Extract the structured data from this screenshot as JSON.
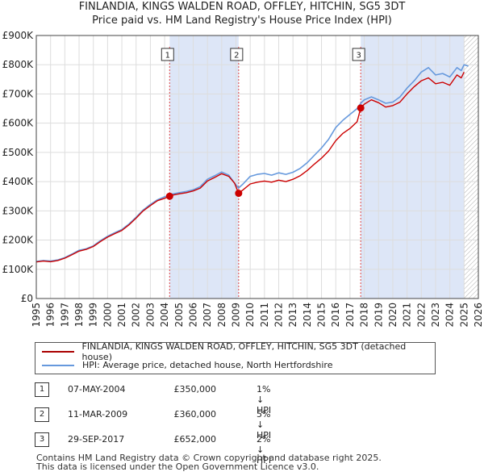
{
  "chart_data": {
    "type": "line",
    "title": "FINLANDIA, KINGS WALDEN ROAD, OFFLEY, HITCHIN, SG5 3DT",
    "subtitle": "Price paid vs. HM Land Registry's House Price Index (HPI)",
    "xlabel": "",
    "ylabel": "",
    "xlim": [
      1995,
      2026
    ],
    "ylim": [
      0,
      900000
    ],
    "yticks": [
      0,
      100000,
      200000,
      300000,
      400000,
      500000,
      600000,
      700000,
      800000,
      900000
    ],
    "ytick_labels": [
      "£0",
      "£100K",
      "£200K",
      "£300K",
      "£400K",
      "£500K",
      "£600K",
      "£700K",
      "£800K",
      "£900K"
    ],
    "xticks": [
      1995,
      1996,
      1997,
      1998,
      1999,
      2000,
      2001,
      2002,
      2003,
      2004,
      2005,
      2006,
      2007,
      2008,
      2009,
      2010,
      2011,
      2012,
      2013,
      2014,
      2015,
      2016,
      2017,
      2018,
      2019,
      2020,
      2021,
      2022,
      2023,
      2024,
      2025,
      2026
    ],
    "xtick_labels": [
      "1995",
      "1996",
      "1997",
      "1998",
      "1999",
      "2000",
      "2001",
      "2002",
      "2003",
      "2004",
      "2005",
      "2006",
      "2007",
      "2008",
      "2009",
      "2010",
      "2011",
      "2012",
      "2013",
      "2014",
      "2015",
      "2016",
      "2017",
      "2018",
      "2019",
      "2020",
      "2021",
      "2022",
      "2023",
      "2024",
      "2025",
      "2026"
    ],
    "grid": true,
    "shaded_periods": [
      [
        2004.35,
        2009.19
      ],
      [
        2017.75,
        2025.0
      ]
    ],
    "hatched_from": 2025.0,
    "series": [
      {
        "name": "FINLANDIA, KINGS WALDEN ROAD, OFFLEY, HITCHIN, SG5 3DT (detached house)",
        "color": "#cc0000",
        "x": [
          1995.0,
          1995.5,
          1996.0,
          1996.5,
          1997.0,
          1997.5,
          1998.0,
          1998.5,
          1999.0,
          1999.5,
          2000.0,
          2000.5,
          2001.0,
          2001.5,
          2002.0,
          2002.5,
          2003.0,
          2003.5,
          2004.0,
          2004.35,
          2004.5,
          2005.0,
          2005.5,
          2006.0,
          2006.5,
          2007.0,
          2007.5,
          2008.0,
          2008.5,
          2008.9,
          2009.19,
          2009.5,
          2010.0,
          2010.5,
          2011.0,
          2011.5,
          2012.0,
          2012.5,
          2013.0,
          2013.5,
          2014.0,
          2014.5,
          2015.0,
          2015.5,
          2016.0,
          2016.5,
          2017.0,
          2017.5,
          2017.75,
          2018.0,
          2018.5,
          2019.0,
          2019.5,
          2020.0,
          2020.5,
          2021.0,
          2021.5,
          2022.0,
          2022.5,
          2023.0,
          2023.5,
          2024.0,
          2024.5,
          2024.8,
          2025.0
        ],
        "values": [
          125000,
          128000,
          126000,
          130000,
          138000,
          150000,
          162000,
          168000,
          178000,
          195000,
          210000,
          222000,
          233000,
          252000,
          275000,
          300000,
          318000,
          335000,
          343000,
          350000,
          353000,
          358000,
          362000,
          368000,
          378000,
          402000,
          414000,
          427000,
          418000,
          395000,
          360000,
          372000,
          392000,
          398000,
          402000,
          398000,
          405000,
          400000,
          408000,
          420000,
          438000,
          460000,
          480000,
          505000,
          540000,
          565000,
          582000,
          605000,
          652000,
          665000,
          680000,
          670000,
          655000,
          660000,
          672000,
          700000,
          725000,
          745000,
          755000,
          735000,
          740000,
          730000,
          765000,
          755000,
          775000
        ]
      },
      {
        "name": "HPI: Average price, detached house, North Hertfordshire",
        "color": "#6699dd",
        "x": [
          1995.0,
          1995.5,
          1996.0,
          1996.5,
          1997.0,
          1997.5,
          1998.0,
          1998.5,
          1999.0,
          1999.5,
          2000.0,
          2000.5,
          2001.0,
          2001.5,
          2002.0,
          2002.5,
          2003.0,
          2003.5,
          2004.0,
          2004.35,
          2004.5,
          2005.0,
          2005.5,
          2006.0,
          2006.5,
          2007.0,
          2007.5,
          2008.0,
          2008.5,
          2008.9,
          2009.19,
          2009.5,
          2010.0,
          2010.5,
          2011.0,
          2011.5,
          2012.0,
          2012.5,
          2013.0,
          2013.5,
          2014.0,
          2014.5,
          2015.0,
          2015.5,
          2016.0,
          2016.5,
          2017.0,
          2017.5,
          2017.75,
          2018.0,
          2018.5,
          2019.0,
          2019.5,
          2020.0,
          2020.5,
          2021.0,
          2021.5,
          2022.0,
          2022.5,
          2023.0,
          2023.5,
          2024.0,
          2024.5,
          2024.8,
          2025.0,
          2025.3
        ],
        "values": [
          127000,
          130000,
          128000,
          132000,
          140000,
          152000,
          165000,
          170000,
          180000,
          198000,
          213000,
          225000,
          236000,
          255000,
          278000,
          303000,
          322000,
          338000,
          348000,
          354000,
          357000,
          362000,
          366000,
          372000,
          383000,
          408000,
          420000,
          433000,
          422000,
          395000,
          378000,
          392000,
          418000,
          425000,
          428000,
          422000,
          430000,
          425000,
          432000,
          445000,
          465000,
          490000,
          515000,
          545000,
          585000,
          610000,
          630000,
          650000,
          668000,
          680000,
          690000,
          680000,
          668000,
          672000,
          690000,
          720000,
          745000,
          775000,
          790000,
          765000,
          770000,
          758000,
          790000,
          780000,
          800000,
          795000
        ]
      }
    ],
    "sales": [
      {
        "label": "1",
        "x": 2004.35,
        "price": 350000
      },
      {
        "label": "2",
        "x": 2009.19,
        "price": 360000
      },
      {
        "label": "3",
        "x": 2017.75,
        "price": 652000
      }
    ]
  },
  "legend": {
    "property_label": "FINLANDIA, KINGS WALDEN ROAD, OFFLEY, HITCHIN, SG5 3DT (detached house)",
    "hpi_label": "HPI: Average price, detached house, North Hertfordshire"
  },
  "sales_table": [
    {
      "num": "1",
      "date": "07-MAY-2004",
      "price": "£350,000",
      "hpi": "1% ↓ HPI"
    },
    {
      "num": "2",
      "date": "11-MAR-2009",
      "price": "£360,000",
      "hpi": "5% ↓ HPI"
    },
    {
      "num": "3",
      "date": "29-SEP-2017",
      "price": "£652,000",
      "hpi": "2% ↓ HPI"
    }
  ],
  "footer": {
    "line1": "Contains HM Land Registry data © Crown copyright and database right 2025.",
    "line2": "This data is licensed under the Open Government Licence v3.0."
  },
  "colors": {
    "property_line": "#cc0000",
    "hpi_line": "#6699dd",
    "shade": "#dde6f7",
    "grid": "#dddddd",
    "vline": "#dd4444"
  }
}
